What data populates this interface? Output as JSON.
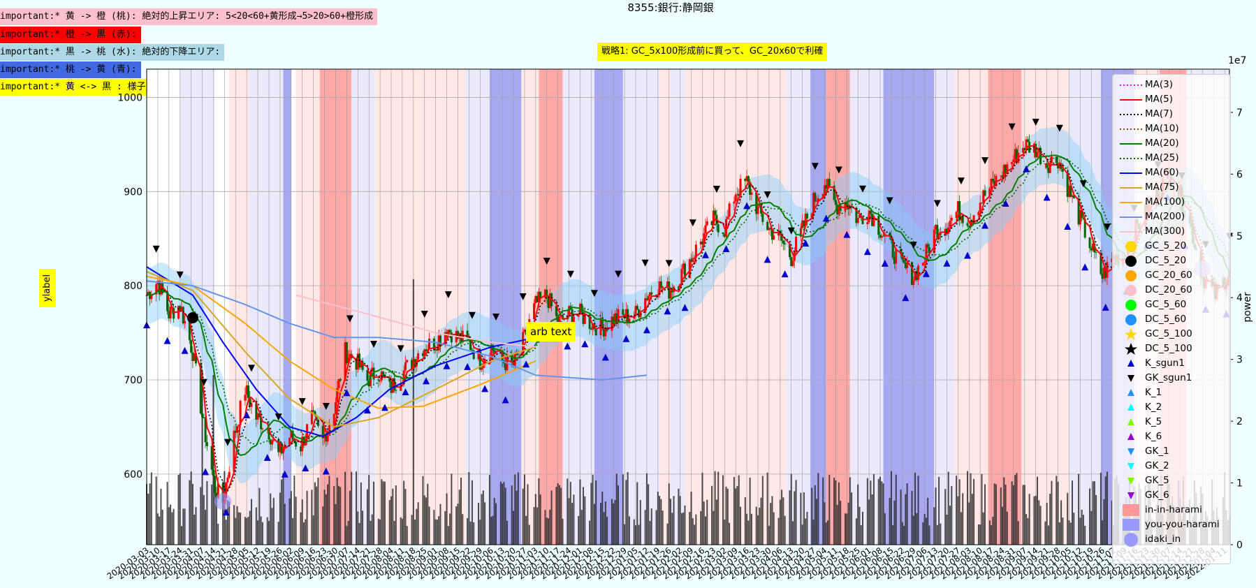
{
  "title": "8355:銀行:静岡銀",
  "notes": [
    {
      "text": "important:* 黄 -> 橙 (桃): 絶対的上昇エリア: 5<20<60+黄形成→5>20>60+橙形成",
      "bg": "#ffc0cb"
    },
    {
      "text": "important:* 橙 -> 黒 (赤):",
      "bg": "#ff0000"
    },
    {
      "text": "important:* 黒 -> 桃 (水): 絶対的下降エリア:",
      "bg": "#add8e6"
    },
    {
      "text": "important:* 桃 -> 黄 (青):",
      "bg": "#4169e1"
    },
    {
      "text": "important:* 黄 <-> 黒 : 様子見:",
      "bg": "#ffff00"
    }
  ],
  "strategy_label": "戦略1: GC_5x100形成前に買って、GC_20x60で利確",
  "arb_text": "arb text",
  "chart_data": {
    "type": "line",
    "title": "8355:銀行:静岡銀",
    "ylabel": "ylabel",
    "y2label": "power",
    "y2_multiplier": "1e7",
    "ylim": [
      525,
      1030
    ],
    "y2lim": [
      0,
      7.7
    ],
    "yticks": [
      600,
      700,
      800,
      900,
      1000
    ],
    "y2ticks": [
      0,
      1,
      2,
      3,
      4,
      5,
      6,
      7
    ],
    "x_start": "2020-03-03",
    "x_end": "2022-01-14",
    "price_keypoints": [
      [
        "2020-03-03",
        790
      ],
      [
        "2020-03-10",
        805
      ],
      [
        "2020-03-17",
        770
      ],
      [
        "2020-03-24",
        780
      ],
      [
        "2020-04-01",
        730
      ],
      [
        "2020-04-08",
        650
      ],
      [
        "2020-04-15",
        585
      ],
      [
        "2020-04-20",
        570
      ],
      [
        "2020-04-27",
        640
      ],
      [
        "2020-05-04",
        690
      ],
      [
        "2020-05-11",
        660
      ],
      [
        "2020-05-18",
        650
      ],
      [
        "2020-05-25",
        620
      ],
      [
        "2020-06-01",
        640
      ],
      [
        "2020-06-08",
        630
      ],
      [
        "2020-06-15",
        660
      ],
      [
        "2020-06-22",
        635
      ],
      [
        "2020-06-29",
        670
      ],
      [
        "2020-07-06",
        730
      ],
      [
        "2020-07-13",
        720
      ],
      [
        "2020-07-20",
        700
      ],
      [
        "2020-07-27",
        710
      ],
      [
        "2020-08-03",
        690
      ],
      [
        "2020-08-10",
        705
      ],
      [
        "2020-08-17",
        720
      ],
      [
        "2020-08-24",
        735
      ],
      [
        "2020-09-01",
        740
      ],
      [
        "2020-09-08",
        755
      ],
      [
        "2020-09-15",
        745
      ],
      [
        "2020-09-22",
        740
      ],
      [
        "2020-09-29",
        720
      ],
      [
        "2020-10-06",
        735
      ],
      [
        "2020-10-13",
        720
      ],
      [
        "2020-10-20",
        715
      ],
      [
        "2020-10-27",
        745
      ],
      [
        "2020-11-03",
        780
      ],
      [
        "2020-11-10",
        790
      ],
      [
        "2020-11-17",
        760
      ],
      [
        "2020-11-24",
        770
      ],
      [
        "2020-12-01",
        770
      ],
      [
        "2020-12-08",
        760
      ],
      [
        "2020-12-15",
        755
      ],
      [
        "2020-12-22",
        765
      ],
      [
        "2021-01-05",
        770
      ],
      [
        "2021-01-12",
        790
      ],
      [
        "2021-01-19",
        800
      ],
      [
        "2021-01-26",
        795
      ],
      [
        "2021-02-02",
        810
      ],
      [
        "2021-02-09",
        830
      ],
      [
        "2021-02-16",
        850
      ],
      [
        "2021-02-23",
        870
      ],
      [
        "2021-03-02",
        860
      ],
      [
        "2021-03-09",
        900
      ],
      [
        "2021-03-16",
        910
      ],
      [
        "2021-03-23",
        880
      ],
      [
        "2021-03-30",
        860
      ],
      [
        "2021-04-06",
        850
      ],
      [
        "2021-04-13",
        830
      ],
      [
        "2021-04-20",
        860
      ],
      [
        "2021-04-27",
        890
      ],
      [
        "2021-05-04",
        910
      ],
      [
        "2021-05-11",
        885
      ],
      [
        "2021-05-18",
        890
      ],
      [
        "2021-05-25",
        870
      ],
      [
        "2021-06-01",
        880
      ],
      [
        "2021-06-08",
        860
      ],
      [
        "2021-06-15",
        840
      ],
      [
        "2021-06-22",
        820
      ],
      [
        "2021-06-29",
        810
      ],
      [
        "2021-07-06",
        830
      ],
      [
        "2021-07-13",
        860
      ],
      [
        "2021-07-20",
        865
      ],
      [
        "2021-07-27",
        880
      ],
      [
        "2021-08-03",
        870
      ],
      [
        "2021-08-10",
        890
      ],
      [
        "2021-08-17",
        905
      ],
      [
        "2021-08-24",
        920
      ],
      [
        "2021-08-31",
        935
      ],
      [
        "2021-09-07",
        950
      ],
      [
        "2021-09-14",
        945
      ],
      [
        "2021-09-21",
        930
      ],
      [
        "2021-09-28",
        935
      ],
      [
        "2021-10-05",
        900
      ],
      [
        "2021-10-12",
        870
      ],
      [
        "2021-10-19",
        840
      ],
      [
        "2021-10-26",
        810
      ],
      [
        "2021-11-02",
        830
      ],
      [
        "2021-11-09",
        830
      ],
      [
        "2021-11-16",
        860
      ],
      [
        "2021-11-23",
        880
      ],
      [
        "2021-11-30",
        900
      ],
      [
        "2021-12-07",
        920
      ],
      [
        "2021-12-14",
        895
      ],
      [
        "2021-12-21",
        860
      ],
      [
        "2021-12-28",
        810
      ],
      [
        "2022-01-05",
        790
      ],
      [
        "2022-01-14",
        815
      ]
    ],
    "ma_keypoints": {
      "MA(60)": [
        [
          "2020-03-03",
          820
        ],
        [
          "2020-04-01",
          790
        ],
        [
          "2020-04-20",
          740
        ],
        [
          "2020-05-11",
          690
        ],
        [
          "2020-06-01",
          650
        ],
        [
          "2020-06-22",
          640
        ],
        [
          "2020-07-13",
          660
        ],
        [
          "2020-08-03",
          690
        ],
        [
          "2020-09-01",
          715
        ],
        [
          "2020-10-06",
          735
        ],
        [
          "2020-11-03",
          745
        ]
      ],
      "MA(75)": [
        [
          "2020-03-03",
          815
        ],
        [
          "2020-04-01",
          795
        ],
        [
          "2020-05-04",
          730
        ],
        [
          "2020-06-01",
          680
        ],
        [
          "2020-06-29",
          650
        ],
        [
          "2020-07-27",
          660
        ],
        [
          "2020-09-01",
          690
        ],
        [
          "2020-10-06",
          720
        ],
        [
          "2020-11-03",
          735
        ]
      ],
      "MA(100)": [
        [
          "2020-03-03",
          810
        ],
        [
          "2020-04-01",
          800
        ],
        [
          "2020-05-04",
          760
        ],
        [
          "2020-06-01",
          720
        ],
        [
          "2020-06-29",
          690
        ],
        [
          "2020-07-27",
          670
        ],
        [
          "2020-08-24",
          672
        ],
        [
          "2020-09-29",
          695
        ],
        [
          "2020-11-03",
          720
        ]
      ],
      "MA(200)": [
        [
          "2020-03-03",
          805
        ],
        [
          "2020-04-01",
          800
        ],
        [
          "2020-05-04",
          780
        ],
        [
          "2020-06-01",
          760
        ],
        [
          "2020-06-29",
          745
        ],
        [
          "2020-07-27",
          745
        ],
        [
          "2020-09-01",
          740
        ],
        [
          "2020-10-06",
          725
        ],
        [
          "2020-11-03",
          705
        ],
        [
          "2020-12-15",
          700
        ],
        [
          "2021-01-12",
          705
        ]
      ],
      "MA(300)": [
        [
          "2020-06-05",
          790
        ],
        [
          "2020-07-20",
          770
        ],
        [
          "2020-09-01",
          750
        ],
        [
          "2020-10-06",
          740
        ],
        [
          "2020-11-03",
          735
        ]
      ]
    },
    "legend_placement": "right",
    "legend": [
      {
        "label": "MA(3)",
        "color": "#ff00ff",
        "kind": "dotted-line"
      },
      {
        "label": "MA(5)",
        "color": "#ff0000",
        "kind": "line"
      },
      {
        "label": "MA(7)",
        "color": "#000000",
        "kind": "dotted-line"
      },
      {
        "label": "MA(10)",
        "color": "#8b4513",
        "kind": "dotted-line"
      },
      {
        "label": "MA(20)",
        "color": "#008000",
        "kind": "line"
      },
      {
        "label": "MA(25)",
        "color": "#006400",
        "kind": "dotted-line"
      },
      {
        "label": "MA(60)",
        "color": "#0000ff",
        "kind": "line"
      },
      {
        "label": "MA(75)",
        "color": "#daa520",
        "kind": "line"
      },
      {
        "label": "MA(100)",
        "color": "#ffa500",
        "kind": "line"
      },
      {
        "label": "MA(200)",
        "color": "#6495ed",
        "kind": "line"
      },
      {
        "label": "MA(300)",
        "color": "#ffc0cb",
        "kind": "line"
      },
      {
        "label": "GC_5_20",
        "color": "#ffd700",
        "kind": "circle"
      },
      {
        "label": "DC_5_20",
        "color": "#000000",
        "kind": "circle"
      },
      {
        "label": "GC_20_60",
        "color": "#ffa500",
        "kind": "circle"
      },
      {
        "label": "DC_20_60",
        "color": "#ffc0cb",
        "kind": "circle"
      },
      {
        "label": "GC_5_60",
        "color": "#00ff00",
        "kind": "circle"
      },
      {
        "label": "DC_5_60",
        "color": "#1e90ff",
        "kind": "circle"
      },
      {
        "label": "GC_5_100",
        "color": "#ffd700",
        "kind": "star"
      },
      {
        "label": "DC_5_100",
        "color": "#000000",
        "kind": "star"
      },
      {
        "label": "K_sgun1",
        "color": "#0000cd",
        "kind": "tri-up"
      },
      {
        "label": "GK_sgun1",
        "color": "#000000",
        "kind": "tri-down"
      },
      {
        "label": "K_1",
        "color": "#1e90ff",
        "kind": "tri-up"
      },
      {
        "label": "K_2",
        "color": "#00ffff",
        "kind": "tri-up"
      },
      {
        "label": "K_5",
        "color": "#7cfc00",
        "kind": "tri-up"
      },
      {
        "label": "K_6",
        "color": "#9400d3",
        "kind": "tri-up"
      },
      {
        "label": "GK_1",
        "color": "#1e90ff",
        "kind": "tri-down"
      },
      {
        "label": "GK_2",
        "color": "#00ffff",
        "kind": "tri-down"
      },
      {
        "label": "GK_5",
        "color": "#7cfc00",
        "kind": "tri-down"
      },
      {
        "label": "GK_6",
        "color": "#9400d3",
        "kind": "tri-down"
      },
      {
        "label": "in-in-harami",
        "color": "#ff9999",
        "kind": "box"
      },
      {
        "label": "you-you-harami",
        "color": "#9999ff",
        "kind": "box"
      },
      {
        "label": "idaki_in",
        "color": "#9999ff",
        "kind": "big-circle"
      }
    ],
    "region_colors": {
      "pink": "#ffe4e1",
      "red": "#ff9999",
      "lavender": "#e6e6fa",
      "blue": "#9999ee"
    },
    "regions": [
      [
        "2020-03-24",
        "2020-04-15",
        "lavender"
      ],
      [
        "2020-04-24",
        "2020-05-06",
        "pink"
      ],
      [
        "2020-05-06",
        "2020-05-28",
        "lavender"
      ],
      [
        "2020-05-28",
        "2020-06-02",
        "blue"
      ],
      [
        "2020-06-05",
        "2020-06-20",
        "pink"
      ],
      [
        "2020-06-20",
        "2020-07-10",
        "red"
      ],
      [
        "2020-07-10",
        "2020-07-25",
        "lavender"
      ],
      [
        "2020-07-25",
        "2020-08-20",
        "pink"
      ],
      [
        "2020-08-20",
        "2020-09-20",
        "pink"
      ],
      [
        "2020-09-20",
        "2020-10-05",
        "lavender"
      ],
      [
        "2020-10-05",
        "2020-10-25",
        "blue"
      ],
      [
        "2020-10-25",
        "2020-11-05",
        "pink"
      ],
      [
        "2020-11-05",
        "2020-11-20",
        "red"
      ],
      [
        "2020-11-20",
        "2020-12-10",
        "lavender"
      ],
      [
        "2020-12-10",
        "2020-12-28",
        "blue"
      ],
      [
        "2020-12-28",
        "2021-01-20",
        "lavender"
      ],
      [
        "2021-01-20",
        "2021-01-27",
        "pink"
      ],
      [
        "2021-01-27",
        "2021-02-05",
        "lavender"
      ],
      [
        "2021-02-05",
        "2021-04-10",
        "pink"
      ],
      [
        "2021-04-10",
        "2021-04-25",
        "lavender"
      ],
      [
        "2021-04-25",
        "2021-05-05",
        "blue"
      ],
      [
        "2021-05-05",
        "2021-05-20",
        "red"
      ],
      [
        "2021-05-20",
        "2021-06-10",
        "lavender"
      ],
      [
        "2021-06-10",
        "2021-07-12",
        "blue"
      ],
      [
        "2021-07-12",
        "2021-07-25",
        "lavender"
      ],
      [
        "2021-07-25",
        "2021-08-15",
        "pink"
      ],
      [
        "2021-08-15",
        "2021-09-05",
        "red"
      ],
      [
        "2021-09-05",
        "2021-10-05",
        "pink"
      ],
      [
        "2021-10-05",
        "2021-10-25",
        "lavender"
      ],
      [
        "2021-10-25",
        "2021-11-15",
        "blue"
      ],
      [
        "2021-11-15",
        "2021-12-01",
        "pink"
      ],
      [
        "2021-12-01",
        "2021-12-18",
        "red"
      ],
      [
        "2021-12-18",
        "2022-01-14",
        "lavender"
      ]
    ]
  }
}
